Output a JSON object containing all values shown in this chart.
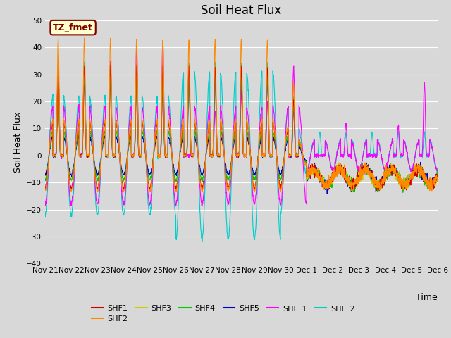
{
  "title": "Soil Heat Flux",
  "ylabel": "Soil Heat Flux",
  "xlabel": "Time",
  "ylim": [
    -40,
    50
  ],
  "xlim": [
    0,
    15
  ],
  "fig_width": 6.4,
  "fig_height": 4.8,
  "dpi": 100,
  "background_color": "#d8d8d8",
  "plot_bg_color": "#d8d8d8",
  "annotation_text": "TZ_fmet",
  "annotation_bg": "#ffffcc",
  "annotation_border": "#800000",
  "series": [
    "SHF1",
    "SHF2",
    "SHF3",
    "SHF4",
    "SHF5",
    "SHF_1",
    "SHF_2"
  ],
  "colors": {
    "SHF1": "#cc0000",
    "SHF2": "#ff8800",
    "SHF3": "#cccc00",
    "SHF4": "#00cc00",
    "SHF5": "#0000cc",
    "SHF_1": "#ff00ff",
    "SHF_2": "#00cccc"
  },
  "xtick_labels": [
    "Nov 21",
    "Nov 22",
    "Nov 23",
    "Nov 24",
    "Nov 25",
    "Nov 26",
    "Nov 27",
    "Nov 28",
    "Nov 29",
    "Nov 30",
    "Dec 1",
    "Dec 2",
    "Dec 3",
    "Dec 4",
    "Dec 5",
    "Dec 6"
  ],
  "ytick_labels": [
    -40,
    -30,
    -20,
    -10,
    0,
    10,
    20,
    30,
    40,
    50
  ],
  "num_days": 15,
  "pts_per_day": 144,
  "grid_color": "#ffffff",
  "title_fontsize": 12,
  "label_fontsize": 9,
  "tick_fontsize": 7.5
}
